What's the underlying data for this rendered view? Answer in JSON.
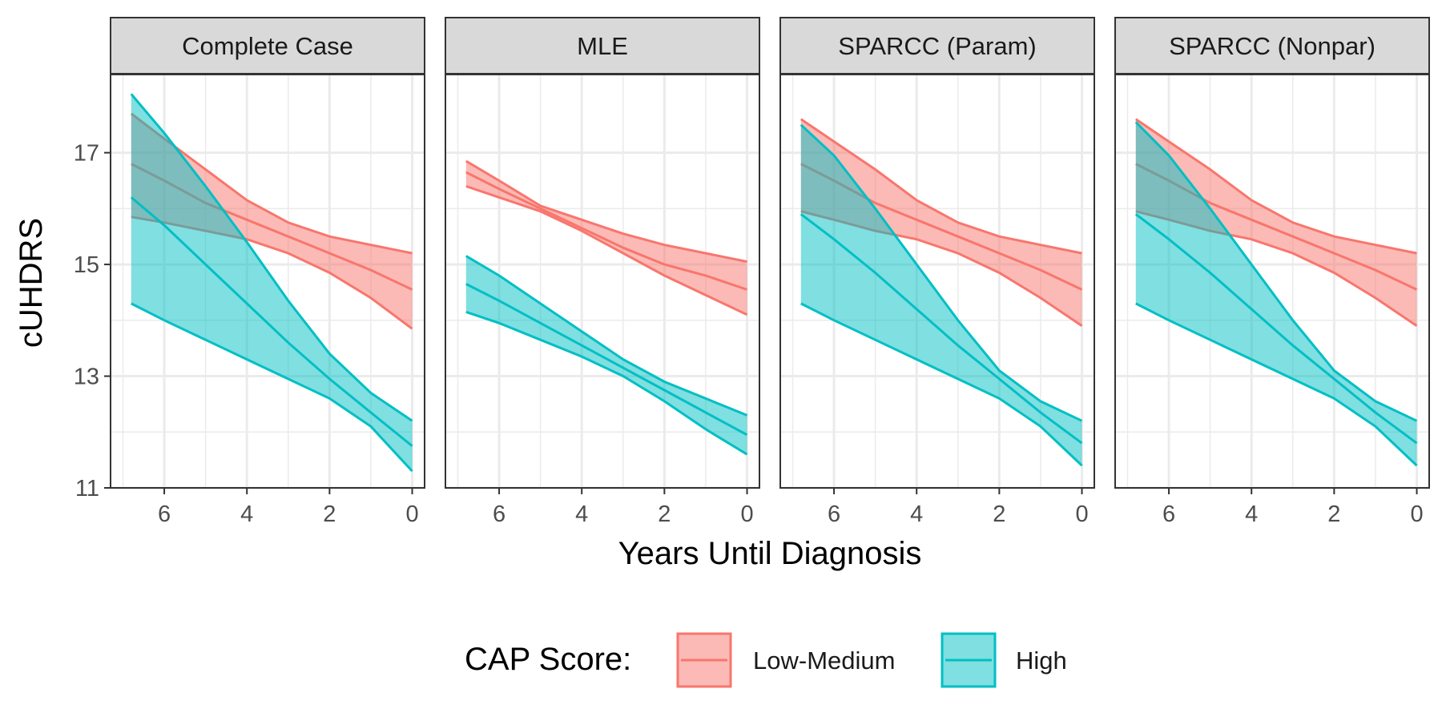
{
  "chart_data": {
    "type": "line",
    "xlabel": "Years Until Diagnosis",
    "ylabel": "cUHDRS",
    "xlim": [
      -7.3,
      0.3
    ],
    "ylim": [
      11,
      18.4
    ],
    "x_reversed": true,
    "x_ticks": [
      "6",
      "4",
      "2",
      "0"
    ],
    "x_tick_values": [
      6,
      4,
      2,
      0
    ],
    "y_ticks": [
      "11",
      "13",
      "15",
      "17"
    ],
    "y_tick_values": [
      11,
      13,
      15,
      17
    ],
    "grid": true,
    "legend": {
      "title": "CAP Score:",
      "position": "bottom",
      "entries": [
        {
          "label": "Low-Medium",
          "color": "#F8766D"
        },
        {
          "label": "High",
          "color": "#00BFC4"
        }
      ]
    },
    "colors": {
      "low_medium": "#F8766D",
      "high": "#00BFC4"
    },
    "x": [
      -6.8,
      -6,
      -5,
      -4,
      -3,
      -2,
      -1,
      0
    ],
    "panels": [
      {
        "name": "Complete Case",
        "series": [
          {
            "name": "Low-Medium",
            "fit": [
              16.8,
              16.5,
              16.1,
              15.8,
              15.5,
              15.2,
              14.9,
              14.55
            ],
            "lower": [
              15.85,
              15.75,
              15.6,
              15.45,
              15.2,
              14.85,
              14.4,
              13.85
            ],
            "upper": [
              17.7,
              17.25,
              16.7,
              16.15,
              15.75,
              15.5,
              15.35,
              15.2
            ]
          },
          {
            "name": "High",
            "fit": [
              16.2,
              15.7,
              15.0,
              14.3,
              13.6,
              12.95,
              12.35,
              11.75
            ],
            "lower": [
              14.3,
              14.0,
              13.65,
              13.3,
              12.95,
              12.6,
              12.1,
              11.3
            ],
            "upper": [
              18.05,
              17.35,
              16.4,
              15.4,
              14.35,
              13.4,
              12.7,
              12.2
            ]
          }
        ]
      },
      {
        "name": "MLE",
        "series": [
          {
            "name": "Low-Medium",
            "fit": [
              16.65,
              16.35,
              16.0,
              15.65,
              15.3,
              15.0,
              14.8,
              14.55
            ],
            "lower": [
              16.4,
              16.2,
              15.95,
              15.6,
              15.2,
              14.8,
              14.45,
              14.1
            ],
            "upper": [
              16.85,
              16.5,
              16.05,
              15.8,
              15.55,
              15.35,
              15.2,
              15.05
            ]
          },
          {
            "name": "High",
            "fit": [
              14.65,
              14.35,
              13.95,
              13.55,
              13.15,
              12.75,
              12.35,
              11.95
            ],
            "lower": [
              14.15,
              13.95,
              13.65,
              13.35,
              13.0,
              12.55,
              12.05,
              11.6
            ],
            "upper": [
              15.15,
              14.8,
              14.3,
              13.8,
              13.3,
              12.9,
              12.6,
              12.3
            ]
          }
        ]
      },
      {
        "name": "SPARCC (Param)",
        "series": [
          {
            "name": "Low-Medium",
            "fit": [
              16.8,
              16.5,
              16.1,
              15.8,
              15.5,
              15.2,
              14.9,
              14.55
            ],
            "lower": [
              15.95,
              15.8,
              15.6,
              15.45,
              15.2,
              14.85,
              14.4,
              13.9
            ],
            "upper": [
              17.6,
              17.2,
              16.7,
              16.15,
              15.75,
              15.5,
              15.35,
              15.2
            ]
          },
          {
            "name": "High",
            "fit": [
              15.9,
              15.45,
              14.85,
              14.2,
              13.55,
              12.95,
              12.35,
              11.8
            ],
            "lower": [
              14.3,
              14.0,
              13.65,
              13.3,
              12.95,
              12.6,
              12.1,
              11.4
            ],
            "upper": [
              17.5,
              16.95,
              16.0,
              15.0,
              14.0,
              13.1,
              12.55,
              12.2
            ]
          }
        ]
      },
      {
        "name": "SPARCC (Nonpar)",
        "series": [
          {
            "name": "Low-Medium",
            "fit": [
              16.8,
              16.5,
              16.1,
              15.8,
              15.5,
              15.2,
              14.9,
              14.55
            ],
            "lower": [
              15.95,
              15.8,
              15.6,
              15.45,
              15.2,
              14.85,
              14.4,
              13.9
            ],
            "upper": [
              17.6,
              17.2,
              16.7,
              16.15,
              15.75,
              15.5,
              15.35,
              15.2
            ]
          },
          {
            "name": "High",
            "fit": [
              15.9,
              15.45,
              14.85,
              14.2,
              13.55,
              12.95,
              12.35,
              11.8
            ],
            "lower": [
              14.3,
              14.0,
              13.65,
              13.3,
              12.95,
              12.6,
              12.1,
              11.4
            ],
            "upper": [
              17.55,
              16.95,
              16.0,
              15.0,
              14.0,
              13.1,
              12.55,
              12.2
            ]
          }
        ]
      }
    ]
  }
}
